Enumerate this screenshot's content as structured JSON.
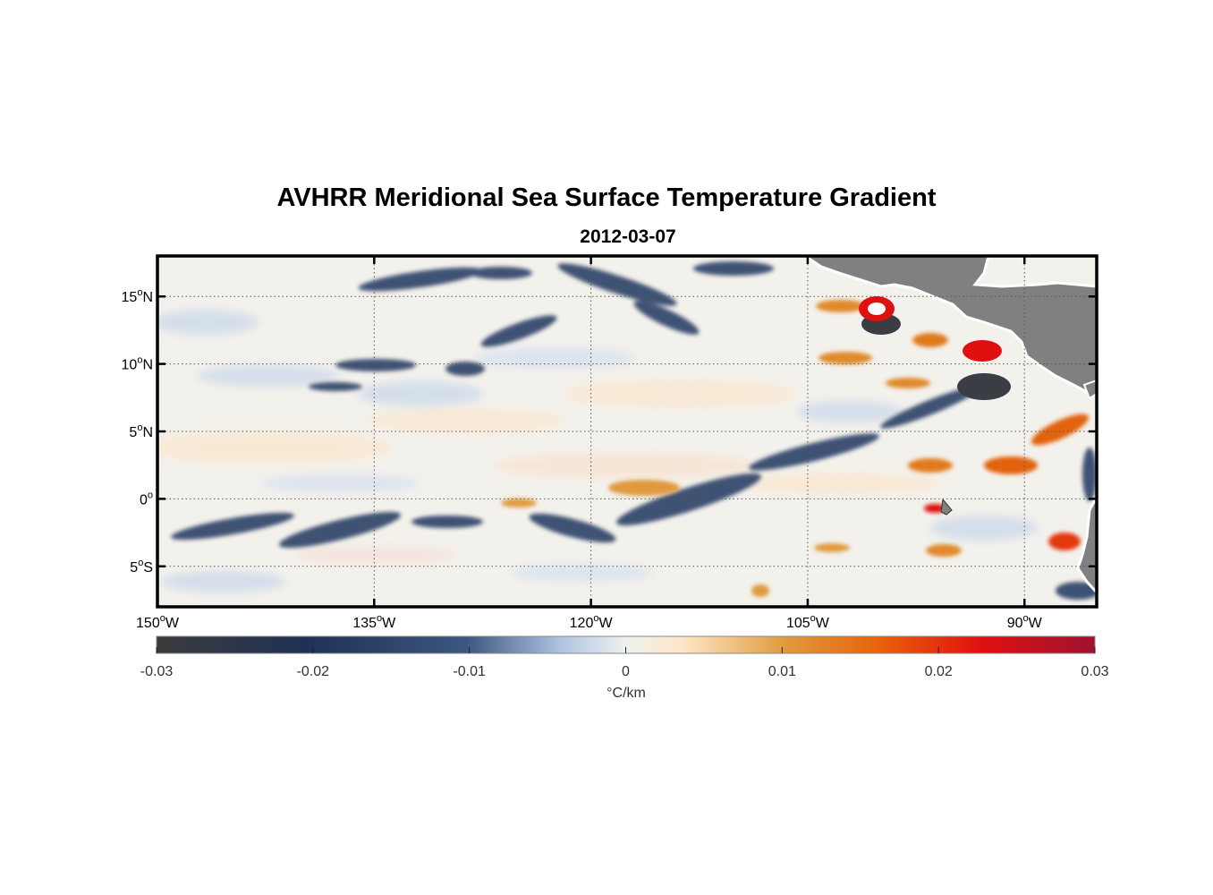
{
  "title": "AVHRR Meridional Sea Surface Temperature Gradient",
  "subtitle": "2012-03-07",
  "map": {
    "lon_range": [
      -150,
      -85
    ],
    "lat_range": [
      -8,
      18
    ],
    "lon_ticks": [
      {
        "value": -150,
        "num": "150",
        "hemi": "W"
      },
      {
        "value": -135,
        "num": "135",
        "hemi": "W"
      },
      {
        "value": -120,
        "num": "120",
        "hemi": "W"
      },
      {
        "value": -105,
        "num": "105",
        "hemi": "W"
      },
      {
        "value": -90,
        "num": "90",
        "hemi": "W"
      }
    ],
    "lat_ticks": [
      {
        "value": 15,
        "num": "15",
        "hemi": "N"
      },
      {
        "value": 10,
        "num": "10",
        "hemi": "N"
      },
      {
        "value": 5,
        "num": "5",
        "hemi": "N"
      },
      {
        "value": 0,
        "num": "0",
        "hemi": ""
      },
      {
        "value": -5,
        "num": "5",
        "hemi": "S"
      }
    ],
    "land_color": "#808080",
    "grid": "dotted"
  },
  "colorbar": {
    "range": [
      -0.03,
      0.03
    ],
    "ticks": [
      "-0.03",
      "-0.02",
      "-0.01",
      "0",
      "0.01",
      "0.02",
      "0.03"
    ],
    "tick_values": [
      -0.03,
      -0.02,
      -0.01,
      0,
      0.01,
      0.02,
      0.03
    ],
    "unit_label": "°C/km",
    "colors": [
      "#3b3b3b",
      "#1f3155",
      "#3d5680",
      "#aec3e0",
      "#eef1ef",
      "#fde7c7",
      "#e09a3e",
      "#e8620a",
      "#e01010",
      "#9e1230"
    ]
  }
}
